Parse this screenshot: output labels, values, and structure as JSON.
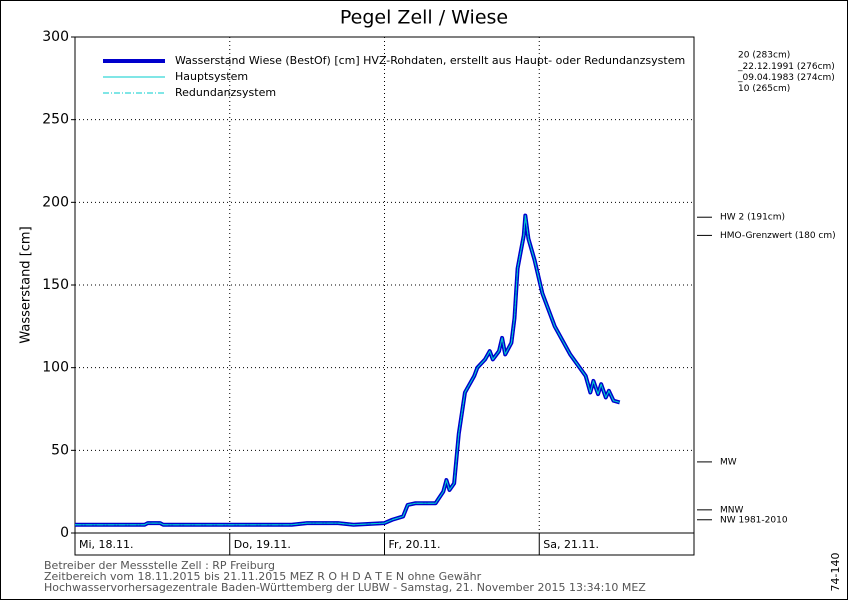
{
  "chart_data": {
    "type": "line",
    "title": "Pegel Zell / Wiese",
    "y_label": "Wasserstand [cm]",
    "x": [
      0,
      0.45,
      0.47,
      0.55,
      0.57,
      1,
      1.4,
      1.5,
      1.7,
      1.8,
      2,
      2.05,
      2.12,
      2.15,
      2.2,
      2.33,
      2.38,
      2.4,
      2.42,
      2.45,
      2.48,
      2.52,
      2.58,
      2.6,
      2.65,
      2.68,
      2.7,
      2.74,
      2.76,
      2.78,
      2.82,
      2.84,
      2.86,
      2.9,
      2.91,
      2.93,
      2.97,
      3.02,
      3.1,
      3.2,
      3.3,
      3.33,
      3.35,
      3.38,
      3.4,
      3.43,
      3.45,
      3.48,
      3.52
    ],
    "series": [
      {
        "name": "Wasserstand Wiese  (BestOf) [cm] HVZ-Rohdaten, erstellt aus Haupt- oder Redundanzsystem",
        "color": "#0000cc",
        "style": "thick",
        "values": [
          5,
          5,
          6,
          6,
          5,
          5,
          5,
          6,
          6,
          5,
          6,
          8,
          10,
          17,
          18,
          18,
          25,
          32,
          26,
          30,
          60,
          85,
          95,
          100,
          105,
          110,
          105,
          110,
          118,
          108,
          115,
          130,
          160,
          180,
          192,
          178,
          165,
          145,
          125,
          108,
          95,
          85,
          92,
          84,
          90,
          82,
          86,
          80,
          79
        ]
      },
      {
        "name": "Hauptsystem",
        "color": "#00cccc",
        "style": "solid",
        "values": [
          5,
          5,
          6,
          6,
          5,
          5,
          5,
          6,
          6,
          5,
          6,
          8,
          10,
          17,
          18,
          18,
          25,
          32,
          26,
          30,
          60,
          85,
          95,
          100,
          105,
          110,
          105,
          110,
          118,
          108,
          115,
          130,
          160,
          180,
          192,
          178,
          165,
          145,
          125,
          108,
          95,
          85,
          92,
          84,
          90,
          82,
          86,
          80,
          79
        ]
      },
      {
        "name": "Redundanzsystem",
        "color": "#00cccc",
        "style": "dashdot",
        "values": [
          5,
          5,
          6,
          6,
          5,
          5,
          5,
          6,
          6,
          5,
          6,
          8,
          10,
          17,
          18,
          18,
          25,
          32,
          26,
          30,
          60,
          85,
          95,
          100,
          105,
          110,
          105,
          110,
          118,
          108,
          115,
          130,
          160,
          180,
          192,
          178,
          165,
          145,
          125,
          108,
          95,
          85,
          92,
          84,
          90,
          82,
          86,
          80,
          79
        ]
      }
    ],
    "xlim": [
      0,
      4
    ],
    "xticks": [
      {
        "value": 0,
        "label": "Mi, 18.11."
      },
      {
        "value": 1,
        "label": "Do, 19.11."
      },
      {
        "value": 2,
        "label": "Fr, 20.11."
      },
      {
        "value": 3,
        "label": "Sa, 21.11."
      }
    ],
    "ylim": [
      0,
      300
    ],
    "yticks": [
      0,
      50,
      100,
      150,
      200,
      250,
      300
    ],
    "grid": true,
    "annotations": [
      {
        "value": 283,
        "label": "20 (283cm)",
        "marker": false
      },
      {
        "value": 276,
        "label": "_22.12.1991 (276cm)",
        "marker": false
      },
      {
        "value": 274,
        "label": "_09.04.1983 (274cm)",
        "marker": false
      },
      {
        "value": 265,
        "label": "10 (265cm)",
        "marker": false
      },
      {
        "value": 191,
        "label": "HW 2 (191cm)",
        "marker": true
      },
      {
        "value": 180,
        "label": "HMO-Grenzwert (180 cm)",
        "marker": true
      },
      {
        "value": 43,
        "label": "MW",
        "marker": true
      },
      {
        "value": 14,
        "label": "MNW",
        "marker": true
      },
      {
        "value": 8,
        "label": "NW 1981-2010",
        "marker": true
      }
    ],
    "footer": [
      "Betreiber der Messstelle Zell : RP Freiburg",
      "Zeitbereich vom 18.11.2015 bis 21.11.2015   MEZ    R O H D A T E N ohne Gewähr",
      "Hochwasservorhersagezentrale Baden-Württemberg der LUBW - Samstag, 21. November 2015 13:34:10 MEZ"
    ],
    "code": "74-140"
  }
}
